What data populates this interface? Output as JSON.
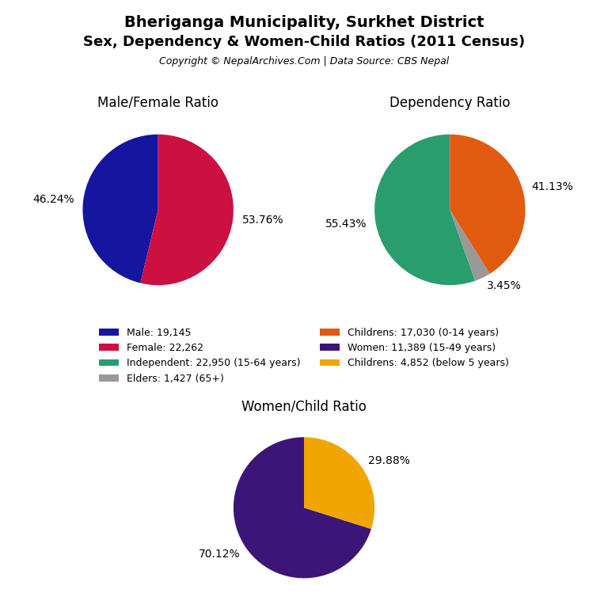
{
  "title": "Bheriganga Municipality, Surkhet District",
  "subtitle": "Sex, Dependency & Women-Child Ratios (2011 Census)",
  "annotations": [
    "Copyright © NepalArchives.Com | Data Source: CBS Nepal"
  ],
  "legend": "center",
  "chart_data": [
    {
      "type": "pie",
      "title": "Male/Female Ratio",
      "categories": [
        "Male: 19,145",
        "Female: 22,262"
      ],
      "values": [
        46.24,
        53.76
      ],
      "value_labels": [
        "46.24%",
        "53.76%"
      ],
      "colors": [
        "#1515a0",
        "#cc1040"
      ],
      "data_labels": true
    },
    {
      "type": "pie",
      "title": "Dependency Ratio",
      "categories": [
        "Independent: 22,950 (15-64 years)",
        "Elders: 1,427 (65+)",
        "Childrens: 17,030 (0-14 years)"
      ],
      "values": [
        55.43,
        3.45,
        41.13
      ],
      "value_labels": [
        "55.43%",
        "3.45%",
        "41.13%"
      ],
      "colors": [
        "#2a9d6f",
        "#999999",
        "#e05a10"
      ],
      "data_labels": true
    },
    {
      "type": "pie",
      "title": "Women/Child Ratio",
      "categories": [
        "Women: 11,389 (15-49 years)",
        "Childrens: 4,852 (below 5 years)"
      ],
      "values": [
        70.12,
        29.88
      ],
      "value_labels": [
        "70.12%",
        "29.88%"
      ],
      "colors": [
        "#3d1578",
        "#f0a500"
      ],
      "data_labels": true
    }
  ]
}
